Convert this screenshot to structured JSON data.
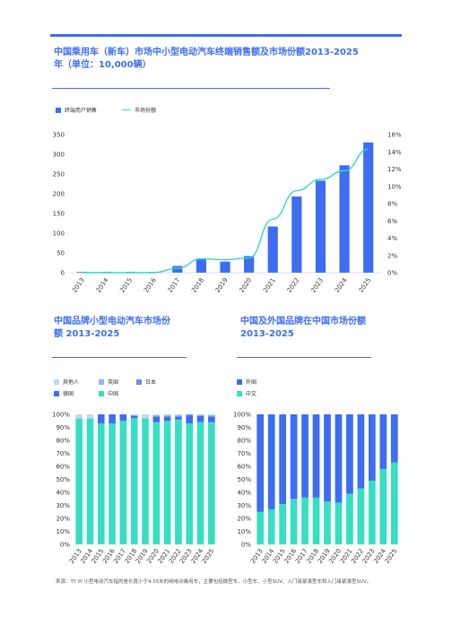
{
  "title": "中国乘用车（新车）市场中小型电动汽车终端销售额及市场份额2013-2025年（单位：10,000辆）",
  "subtitle_left": "中国品牌小型电动汽车市场份额 2013-2025",
  "subtitle_right": "中国及外国品牌在中国市场份额 2013-2025",
  "legend_main": {
    "bar": "终端用户销售",
    "line": "市场份额"
  },
  "legend_left": [
    "其他人",
    "英国",
    "日本",
    "德国",
    "中国"
  ],
  "legend_right": [
    "外国",
    "中文"
  ],
  "footnote": "来源：TY Pi 小型电动汽车指的是长度小于4.55米的纯电动乘用车，主要包括微型车、小型车、小型SUV、入门级紧凑型车和入门级紧凑型SUV。",
  "colors": {
    "accent": "#3d6df2",
    "bar": "#3d6df2",
    "line": "#35d7c2",
    "china": "#36dfc3",
    "germany": "#3d6df2",
    "japan": "#6b8fe8",
    "uk": "#9db3ee",
    "other": "#c9d3f0",
    "foreign": "#3d6df2",
    "chinese": "#36dfc3"
  },
  "chart_data": [
    {
      "type": "bar",
      "categories": [
        "2013",
        "2014",
        "2015",
        "2016",
        "2017",
        "2018",
        "2019",
        "2020",
        "2021",
        "2022",
        "2023",
        "2024",
        "2025"
      ],
      "series": [
        {
          "name": "终端用户销售",
          "values": [
            1,
            1,
            2,
            0,
            17,
            34,
            28,
            42,
            117,
            193,
            233,
            272,
            330
          ]
        },
        {
          "name": "市场份额",
          "type": "line",
          "axis": "right",
          "values": [
            0,
            0,
            0,
            0,
            0.5,
            1.6,
            1.5,
            1.7,
            6.2,
            9.5,
            10.8,
            11.8,
            14.3
          ]
        }
      ],
      "ylim": [
        0,
        350
      ],
      "yticks": [
        "0",
        "50",
        "100",
        "150",
        "200",
        "250",
        "300",
        "350"
      ],
      "y2lim": [
        0,
        16
      ],
      "y2ticks": [
        "0%",
        "2%",
        "4%",
        "6%",
        "8%",
        "10%",
        "12%",
        "14%",
        "16%"
      ],
      "grid": false,
      "legend": "top-left"
    },
    {
      "type": "bar",
      "stacked": true,
      "categories": [
        "2013",
        "2014",
        "2015",
        "2016",
        "2017",
        "2018",
        "2019",
        "2020",
        "2021",
        "2022",
        "2023",
        "2024",
        "2025"
      ],
      "series": [
        {
          "name": "中国",
          "values": [
            97,
            97,
            93,
            93,
            95,
            97,
            97,
            94,
            95,
            96,
            93,
            94,
            94
          ]
        },
        {
          "name": "德国",
          "values": [
            0,
            0,
            7,
            7,
            5,
            2,
            0,
            4,
            3,
            2,
            6,
            5,
            4
          ]
        },
        {
          "name": "日本",
          "values": [
            0,
            0,
            0,
            0,
            0,
            0,
            0,
            1,
            1,
            1,
            1,
            0,
            1
          ]
        },
        {
          "name": "英国",
          "values": [
            0,
            0,
            0,
            0,
            0,
            0,
            0,
            0,
            0,
            0,
            0,
            0,
            0
          ]
        },
        {
          "name": "其他人",
          "values": [
            3,
            3,
            0,
            0,
            0,
            1,
            3,
            1,
            1,
            1,
            0,
            1,
            1
          ]
        }
      ],
      "ylim": [
        0,
        100
      ],
      "yticks": [
        "0%",
        "10%",
        "20%",
        "30%",
        "40%",
        "50%",
        "60%",
        "70%",
        "80%",
        "90%",
        "100%"
      ],
      "legend": "top-left"
    },
    {
      "type": "bar",
      "stacked": true,
      "categories": [
        "2013",
        "2014",
        "2015",
        "2016",
        "2017",
        "2018",
        "2019",
        "2020",
        "2021",
        "2022",
        "2023",
        "2024",
        "2025"
      ],
      "series": [
        {
          "name": "中文",
          "values": [
            25,
            27,
            31,
            35,
            36,
            36,
            33,
            32,
            39,
            43,
            49,
            58,
            63
          ]
        },
        {
          "name": "外国",
          "values": [
            75,
            73,
            69,
            65,
            64,
            64,
            67,
            68,
            61,
            57,
            51,
            42,
            37
          ]
        }
      ],
      "ylim": [
        0,
        100
      ],
      "yticks": [
        "0%",
        "10%",
        "20%",
        "30%",
        "40%",
        "50%",
        "60%",
        "70%",
        "80%",
        "90%",
        "100%"
      ],
      "legend": "top-left"
    }
  ]
}
